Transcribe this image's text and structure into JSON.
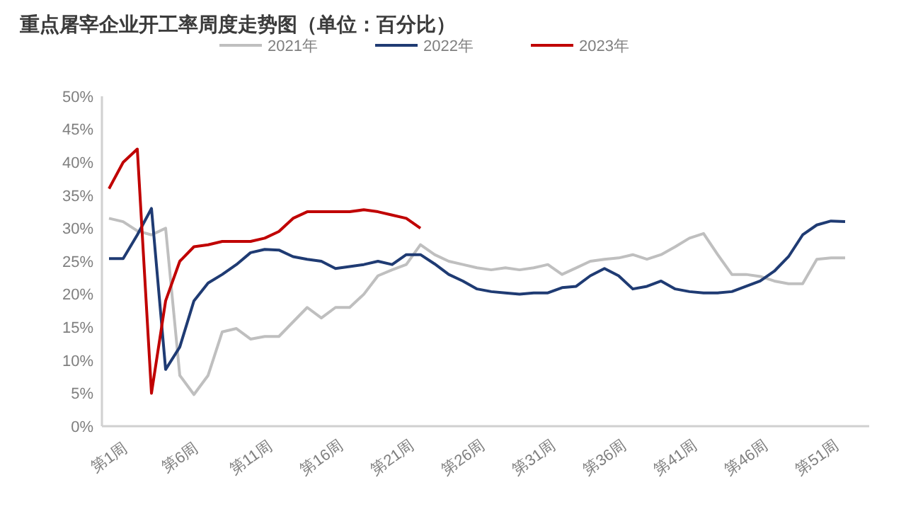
{
  "chart_data": {
    "type": "line",
    "title": "重点屠宰企业开工率周度走势图（单位：百分比）",
    "categories": [
      "第1周",
      null,
      null,
      null,
      null,
      "第6周",
      null,
      null,
      null,
      null,
      "第11周",
      null,
      null,
      null,
      null,
      "第16周",
      null,
      null,
      null,
      null,
      "第21周",
      null,
      null,
      null,
      null,
      "第26周",
      null,
      null,
      null,
      null,
      "第31周",
      null,
      null,
      null,
      null,
      "第36周",
      null,
      null,
      null,
      null,
      "第41周",
      null,
      null,
      null,
      null,
      "第46周",
      null,
      null,
      null,
      null,
      "第51周",
      null,
      null
    ],
    "series": [
      {
        "name": "2021年",
        "color": "#bfbfbf",
        "values": [
          31.5,
          31,
          29.6,
          29,
          30,
          7.7,
          4.8,
          7.7,
          14.3,
          14.8,
          13.2,
          13.6,
          13.6,
          15.8,
          18,
          16.4,
          18,
          18,
          20,
          22.8,
          23.7,
          24.5,
          27.5,
          26,
          25,
          24.5,
          24,
          23.7,
          24,
          23.7,
          24,
          24.5,
          23,
          24,
          25,
          25.3,
          25.5,
          26,
          25.3,
          26,
          27.2,
          28.5,
          29.2,
          26,
          23,
          23,
          22.7,
          22,
          21.6,
          21.6,
          25.3,
          25.5,
          25.5
        ]
      },
      {
        "name": "2022年",
        "color": "#1f3b73",
        "values": [
          25.4,
          25.4,
          29,
          33,
          8.6,
          12,
          19,
          21.7,
          23,
          24.5,
          26.3,
          26.8,
          26.7,
          25.7,
          25.3,
          25,
          23.9,
          24.2,
          24.5,
          25,
          24.5,
          26,
          26,
          24.6,
          23,
          22,
          20.8,
          20.4,
          20.2,
          20,
          20.2,
          20.2,
          21,
          21.2,
          22.8,
          23.9,
          22.8,
          20.8,
          21.2,
          22,
          20.8,
          20.4,
          20.2,
          20.2,
          20.4,
          21.2,
          22,
          23.5,
          25.7,
          29,
          30.5,
          31.1,
          31
        ]
      },
      {
        "name": "2023年",
        "color": "#c00000",
        "values": [
          36,
          40,
          42,
          5,
          19,
          25,
          27.2,
          27.5,
          28,
          28,
          28,
          28.5,
          29.5,
          31.5,
          32.5,
          32.5,
          32.5,
          32.5,
          32.8,
          32.5,
          32,
          31.5,
          30,
          null,
          null,
          null,
          null,
          null,
          null,
          null,
          null,
          null,
          null,
          null,
          null,
          null,
          null,
          null,
          null,
          null,
          null,
          null,
          null,
          null,
          null,
          null,
          null,
          null,
          null,
          null,
          null,
          null,
          null
        ]
      }
    ],
    "ylim": [
      0,
      50
    ],
    "yticks": [
      {
        "value": 0,
        "label": "0%"
      },
      {
        "value": 5,
        "label": "5%"
      },
      {
        "value": 10,
        "label": "10%"
      },
      {
        "value": 15,
        "label": "15%"
      },
      {
        "value": 20,
        "label": "20%"
      },
      {
        "value": 25,
        "label": "25%"
      },
      {
        "value": 30,
        "label": "30%"
      },
      {
        "value": 35,
        "label": "35%"
      },
      {
        "value": 40,
        "label": "40%"
      },
      {
        "value": 45,
        "label": "45%"
      },
      {
        "value": 50,
        "label": "50%"
      }
    ],
    "grid": false,
    "legend": "top",
    "marker": "none",
    "line_style": "solid"
  }
}
